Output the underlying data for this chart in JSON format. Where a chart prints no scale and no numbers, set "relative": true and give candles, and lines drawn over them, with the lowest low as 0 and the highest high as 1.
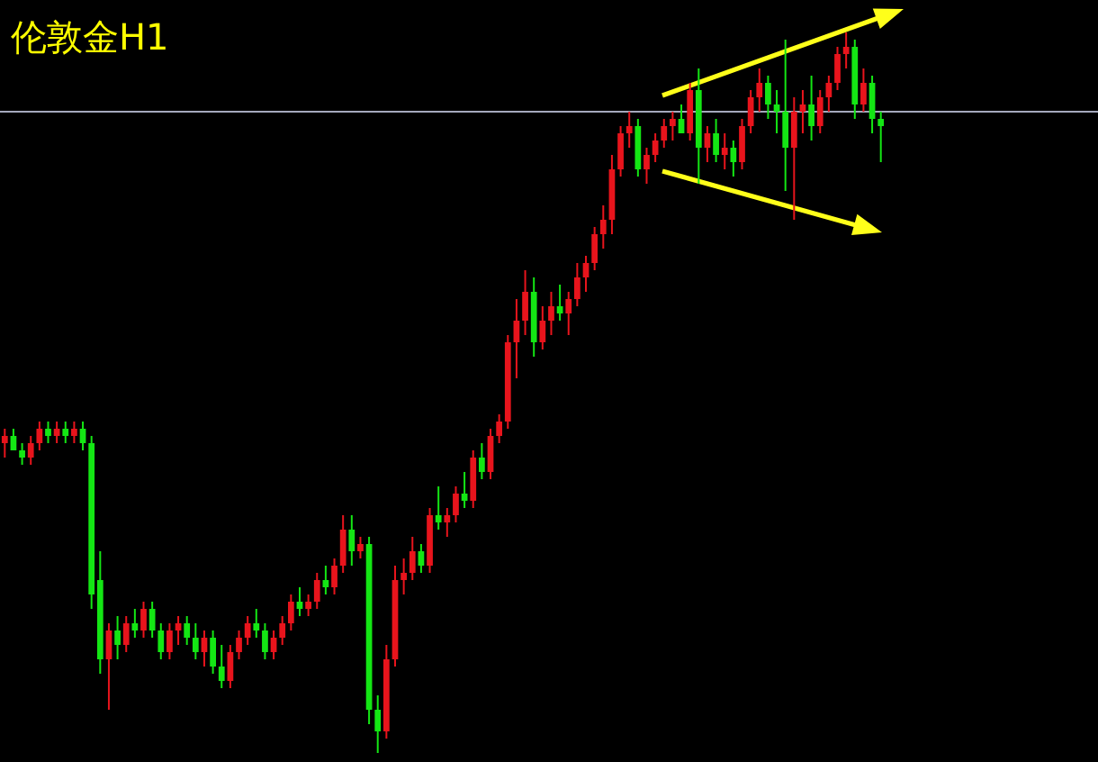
{
  "chart_data": {
    "type": "candlestick",
    "title": "伦敦金H1",
    "relative": true,
    "categories": [
      null,
      null,
      null,
      null,
      null,
      null,
      null,
      null,
      null,
      null,
      null,
      null,
      null,
      null,
      null,
      null,
      null,
      null,
      null,
      null,
      null,
      null,
      null,
      null,
      null,
      null,
      null,
      null,
      null,
      null,
      null,
      null,
      null,
      null,
      null,
      null,
      null,
      null,
      null,
      null,
      null,
      null,
      null,
      null,
      null,
      null,
      null,
      null,
      null,
      null,
      null,
      null,
      null,
      null,
      null,
      null,
      null,
      null,
      null,
      null,
      null,
      null,
      null,
      null,
      null,
      null,
      null,
      null,
      null,
      null,
      null,
      null,
      null,
      null,
      null,
      null,
      null,
      null,
      null,
      null,
      null,
      null,
      null,
      null,
      null,
      null,
      null,
      null,
      null,
      null,
      null,
      null,
      null,
      null,
      null,
      null,
      null,
      null,
      null,
      null,
      null,
      null
    ],
    "ohlc": [
      [
        0.43,
        0.45,
        0.41,
        0.44
      ],
      [
        0.44,
        0.45,
        0.42,
        0.42
      ],
      [
        0.42,
        0.43,
        0.4,
        0.41
      ],
      [
        0.41,
        0.44,
        0.4,
        0.43
      ],
      [
        0.43,
        0.46,
        0.42,
        0.45
      ],
      [
        0.45,
        0.46,
        0.43,
        0.44
      ],
      [
        0.44,
        0.46,
        0.43,
        0.45
      ],
      [
        0.45,
        0.46,
        0.43,
        0.44
      ],
      [
        0.44,
        0.46,
        0.43,
        0.45
      ],
      [
        0.45,
        0.46,
        0.42,
        0.43
      ],
      [
        0.43,
        0.44,
        0.2,
        0.22
      ],
      [
        0.24,
        0.28,
        0.11,
        0.13
      ],
      [
        0.13,
        0.18,
        0.06,
        0.17
      ],
      [
        0.17,
        0.19,
        0.13,
        0.15
      ],
      [
        0.15,
        0.19,
        0.14,
        0.18
      ],
      [
        0.18,
        0.2,
        0.16,
        0.17
      ],
      [
        0.17,
        0.21,
        0.16,
        0.2
      ],
      [
        0.2,
        0.21,
        0.16,
        0.17
      ],
      [
        0.17,
        0.18,
        0.13,
        0.14
      ],
      [
        0.14,
        0.18,
        0.13,
        0.17
      ],
      [
        0.17,
        0.19,
        0.15,
        0.18
      ],
      [
        0.18,
        0.19,
        0.15,
        0.16
      ],
      [
        0.16,
        0.18,
        0.13,
        0.14
      ],
      [
        0.14,
        0.17,
        0.12,
        0.16
      ],
      [
        0.16,
        0.17,
        0.11,
        0.12
      ],
      [
        0.12,
        0.15,
        0.09,
        0.1
      ],
      [
        0.1,
        0.15,
        0.09,
        0.14
      ],
      [
        0.14,
        0.17,
        0.13,
        0.16
      ],
      [
        0.16,
        0.19,
        0.15,
        0.18
      ],
      [
        0.18,
        0.2,
        0.16,
        0.17
      ],
      [
        0.17,
        0.18,
        0.13,
        0.14
      ],
      [
        0.14,
        0.17,
        0.13,
        0.16
      ],
      [
        0.16,
        0.19,
        0.15,
        0.18
      ],
      [
        0.18,
        0.22,
        0.17,
        0.21
      ],
      [
        0.21,
        0.23,
        0.19,
        0.2
      ],
      [
        0.2,
        0.22,
        0.19,
        0.21
      ],
      [
        0.21,
        0.25,
        0.2,
        0.24
      ],
      [
        0.24,
        0.26,
        0.22,
        0.23
      ],
      [
        0.23,
        0.27,
        0.22,
        0.26
      ],
      [
        0.26,
        0.33,
        0.25,
        0.31
      ],
      [
        0.31,
        0.33,
        0.26,
        0.28
      ],
      [
        0.28,
        0.3,
        0.27,
        0.29
      ],
      [
        0.29,
        0.3,
        0.04,
        0.06
      ],
      [
        0.06,
        0.08,
        0,
        0.03
      ],
      [
        0.03,
        0.15,
        0.02,
        0.13
      ],
      [
        0.13,
        0.26,
        0.12,
        0.24
      ],
      [
        0.24,
        0.27,
        0.22,
        0.25
      ],
      [
        0.25,
        0.3,
        0.24,
        0.28
      ],
      [
        0.28,
        0.29,
        0.25,
        0.26
      ],
      [
        0.26,
        0.34,
        0.25,
        0.33
      ],
      [
        0.33,
        0.37,
        0.31,
        0.32
      ],
      [
        0.32,
        0.34,
        0.3,
        0.33
      ],
      [
        0.33,
        0.37,
        0.32,
        0.36
      ],
      [
        0.36,
        0.39,
        0.34,
        0.35
      ],
      [
        0.35,
        0.42,
        0.34,
        0.41
      ],
      [
        0.41,
        0.43,
        0.38,
        0.39
      ],
      [
        0.39,
        0.45,
        0.38,
        0.44
      ],
      [
        0.44,
        0.47,
        0.43,
        0.46
      ],
      [
        0.46,
        0.58,
        0.45,
        0.57
      ],
      [
        0.57,
        0.63,
        0.52,
        0.6
      ],
      [
        0.6,
        0.67,
        0.58,
        0.64
      ],
      [
        0.64,
        0.66,
        0.55,
        0.57
      ],
      [
        0.57,
        0.62,
        0.56,
        0.6
      ],
      [
        0.6,
        0.64,
        0.58,
        0.62
      ],
      [
        0.62,
        0.65,
        0.6,
        0.61
      ],
      [
        0.61,
        0.64,
        0.58,
        0.63
      ],
      [
        0.63,
        0.68,
        0.62,
        0.66
      ],
      [
        0.66,
        0.69,
        0.64,
        0.68
      ],
      [
        0.68,
        0.73,
        0.67,
        0.72
      ],
      [
        0.72,
        0.76,
        0.7,
        0.74
      ],
      [
        0.74,
        0.83,
        0.72,
        0.81
      ],
      [
        0.81,
        0.87,
        0.8,
        0.86
      ],
      [
        0.86,
        0.89,
        0.84,
        0.87
      ],
      [
        0.87,
        0.88,
        0.8,
        0.81
      ],
      [
        0.81,
        0.84,
        0.79,
        0.83
      ],
      [
        0.83,
        0.86,
        0.82,
        0.85
      ],
      [
        0.85,
        0.88,
        0.84,
        0.87
      ],
      [
        0.87,
        0.89,
        0.85,
        0.88
      ],
      [
        0.88,
        0.9,
        0.86,
        0.86
      ],
      [
        0.86,
        0.93,
        0.85,
        0.92
      ],
      [
        0.92,
        0.95,
        0.79,
        0.84
      ],
      [
        0.84,
        0.87,
        0.82,
        0.86
      ],
      [
        0.86,
        0.88,
        0.82,
        0.83
      ],
      [
        0.83,
        0.86,
        0.81,
        0.84
      ],
      [
        0.84,
        0.85,
        0.8,
        0.82
      ],
      [
        0.82,
        0.88,
        0.81,
        0.87
      ],
      [
        0.87,
        0.92,
        0.86,
        0.91
      ],
      [
        0.91,
        0.95,
        0.89,
        0.93
      ],
      [
        0.93,
        0.94,
        0.88,
        0.9
      ],
      [
        0.9,
        0.92,
        0.86,
        0.89
      ],
      [
        0.89,
        0.99,
        0.78,
        0.84
      ],
      [
        0.84,
        0.91,
        0.74,
        0.89
      ],
      [
        0.89,
        0.92,
        0.86,
        0.9
      ],
      [
        0.9,
        0.94,
        0.85,
        0.87
      ],
      [
        0.87,
        0.92,
        0.86,
        0.91
      ],
      [
        0.91,
        0.94,
        0.89,
        0.93
      ],
      [
        0.93,
        0.98,
        0.92,
        0.97
      ],
      [
        0.97,
        1.0,
        0.95,
        0.98
      ],
      [
        0.98,
        0.99,
        0.88,
        0.9
      ],
      [
        0.9,
        0.95,
        0.89,
        0.93
      ],
      [
        0.93,
        0.94,
        0.86,
        0.88
      ],
      [
        0.88,
        0.89,
        0.82,
        0.87
      ]
    ],
    "colors": [
      "#e8141c",
      "#14e614",
      "#14e614",
      "#e8141c",
      "#e8141c",
      "#14e614",
      "#e8141c",
      "#14e614",
      "#e8141c",
      "#14e614",
      "#14e614",
      "#14e614",
      "#e8141c",
      "#14e614",
      "#e8141c",
      "#14e614",
      "#e8141c",
      "#14e614",
      "#14e614",
      "#e8141c",
      "#e8141c",
      "#14e614",
      "#14e614",
      "#e8141c",
      "#14e614",
      "#14e614",
      "#e8141c",
      "#e8141c",
      "#e8141c",
      "#14e614",
      "#14e614",
      "#e8141c",
      "#e8141c",
      "#e8141c",
      "#14e614",
      "#e8141c",
      "#e8141c",
      "#14e614",
      "#e8141c",
      "#e8141c",
      "#14e614",
      "#e8141c",
      "#14e614",
      "#14e614",
      "#e8141c",
      "#e8141c",
      "#e8141c",
      "#e8141c",
      "#14e614",
      "#e8141c",
      "#14e614",
      "#e8141c",
      "#e8141c",
      "#14e614",
      "#e8141c",
      "#14e614",
      "#e8141c",
      "#e8141c",
      "#e8141c",
      "#e8141c",
      "#e8141c",
      "#14e614",
      "#e8141c",
      "#e8141c",
      "#14e614",
      "#e8141c",
      "#e8141c",
      "#e8141c",
      "#e8141c",
      "#e8141c",
      "#e8141c",
      "#e8141c",
      "#e8141c",
      "#14e614",
      "#e8141c",
      "#e8141c",
      "#e8141c",
      "#e8141c",
      "#14e614",
      "#e8141c",
      "#14e614",
      "#e8141c",
      "#14e614",
      "#e8141c",
      "#14e614",
      "#e8141c",
      "#e8141c",
      "#e8141c",
      "#14e614",
      "#14e614",
      "#14e614",
      "#e8141c",
      "#e8141c",
      "#14e614",
      "#e8141c",
      "#e8141c",
      "#e8141c",
      "#e8141c",
      "#14e614",
      "#e8141c",
      "#14e614",
      "#14e614"
    ],
    "ref_lines": [
      {
        "axis": "y",
        "value": 0.89,
        "color": "#a4a8bc"
      }
    ]
  }
}
